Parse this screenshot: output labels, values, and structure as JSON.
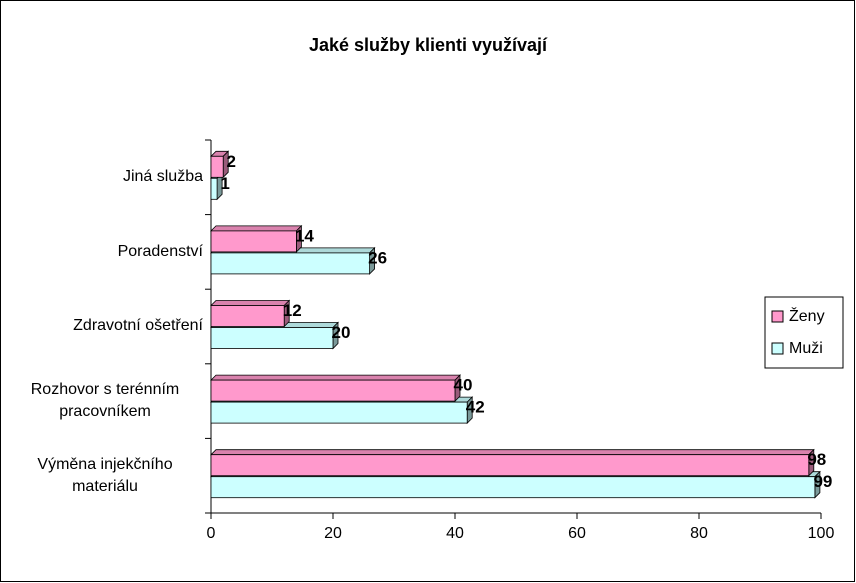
{
  "chart_data": {
    "type": "bar3d_horizontal",
    "title": "Jaké služby klienti využívají",
    "categories": [
      "Jiná služba",
      "Poradenství",
      "Zdravotní ošetření",
      "Rozhovor s terénním pracovníkem",
      "Výměna injekčního materiálu"
    ],
    "series": [
      {
        "name": "Ženy",
        "color": "#ff99cc",
        "values": [
          2,
          14,
          12,
          40,
          98
        ]
      },
      {
        "name": "Muži",
        "color": "#ccffff",
        "values": [
          1,
          26,
          20,
          42,
          99
        ]
      }
    ],
    "xlim": [
      0,
      100
    ],
    "xticks": [
      0,
      20,
      40,
      60,
      80,
      100
    ],
    "legend": "right"
  }
}
